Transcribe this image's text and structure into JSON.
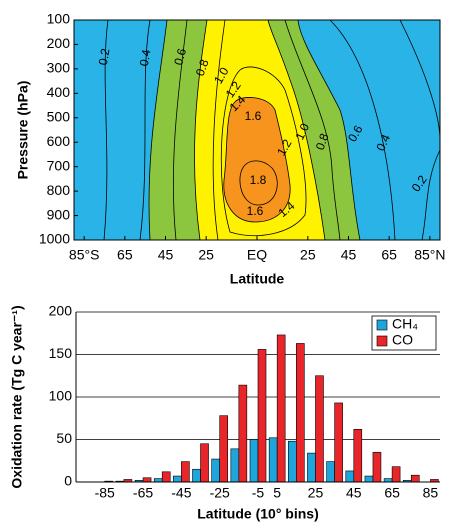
{
  "chart_data": [
    {
      "type": "contour",
      "y_label": "Pressure (hPa)",
      "x_label": "Latitude",
      "xlim": [
        -90,
        90
      ],
      "xticks": [
        {
          "value": -85,
          "label": "85°S"
        },
        {
          "value": -65,
          "label": "65"
        },
        {
          "value": -45,
          "label": "45"
        },
        {
          "value": -25,
          "label": "25"
        },
        {
          "value": 0,
          "label": "EQ"
        },
        25,
        45,
        65,
        {
          "value": 85,
          "label": "85°N"
        }
      ],
      "ylim": [
        1000,
        100
      ],
      "yticks": [
        100,
        200,
        300,
        400,
        500,
        600,
        700,
        800,
        900,
        1000
      ],
      "contour_labels": [
        0.2,
        0.4,
        0.6,
        0.8,
        {
          "value": 1,
          "label": "1.0"
        },
        1.2,
        1.4,
        1.6,
        1.8,
        1.6,
        1.4,
        1.2,
        {
          "value": 1,
          "label": "1.0"
        },
        0.8,
        0.6,
        0.4,
        0.2
      ]
    },
    {
      "type": "bar",
      "y_label": "Oxidation rate (Tg C year⁻¹)",
      "x_label": "Latitude (10° bins)",
      "x": [
        -85,
        -75,
        -65,
        -55,
        -45,
        -35,
        -25,
        -15,
        -5,
        5,
        15,
        25,
        35,
        45,
        55,
        65,
        75,
        85
      ],
      "series": [
        {
          "name": "CH₄",
          "color": "#1ea5dc",
          "values": [
            0,
            1,
            2,
            4,
            7,
            15,
            27,
            39,
            50,
            52,
            48,
            34,
            24,
            13,
            7,
            4,
            2,
            0
          ]
        },
        {
          "name": "CO",
          "color": "#e8262a",
          "values": [
            1,
            3,
            5,
            12,
            24,
            45,
            78,
            114,
            156,
            173,
            163,
            125,
            93,
            62,
            35,
            18,
            8,
            3
          ]
        }
      ],
      "xlim": [
        -100,
        90
      ],
      "xticks": [
        -85,
        -65,
        -45,
        -25,
        -5,
        5,
        25,
        45,
        65,
        85
      ],
      "ylim": [
        0,
        200
      ],
      "yticks": [
        0,
        50,
        100,
        150,
        200
      ],
      "grid": true,
      "legend": "upper right"
    }
  ]
}
